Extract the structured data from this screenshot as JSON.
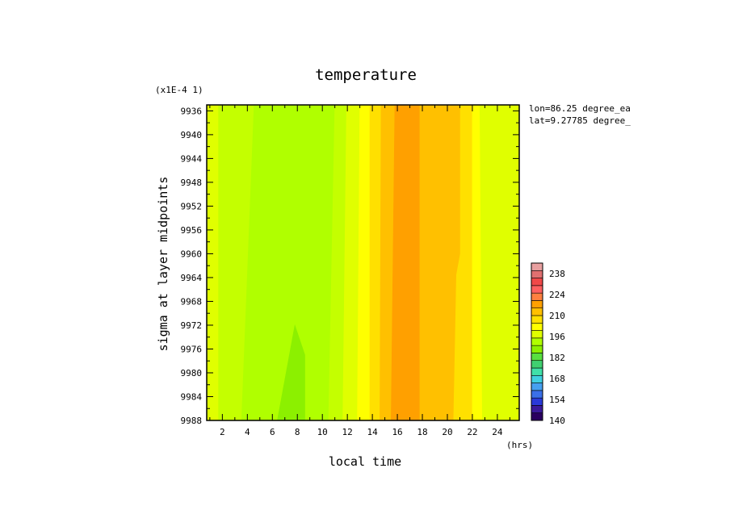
{
  "chart_data": {
    "type": "heatmap",
    "title": "temperature",
    "xlabel": "local time",
    "ylabel": "sigma at layer midpoints",
    "x_unit": "(hrs)",
    "y_multiplier": "(x1E-4 1)",
    "info": [
      "lon=86.25 degree_ea",
      "lat=9.27785 degree_"
    ],
    "xlim": [
      0.75,
      25.75
    ],
    "ylim": [
      9988,
      9935
    ],
    "x_ticks": [
      2,
      4,
      6,
      8,
      10,
      12,
      14,
      16,
      18,
      20,
      22,
      24
    ],
    "y_ticks": [
      9936,
      9940,
      9944,
      9948,
      9952,
      9956,
      9960,
      9964,
      9968,
      9972,
      9976,
      9980,
      9984,
      9988
    ],
    "x_tick_labels": [
      "2",
      "4",
      "6",
      "8",
      "10",
      "12",
      "14",
      "16",
      "18",
      "20",
      "22",
      "24"
    ],
    "y_tick_labels": [
      "9936",
      "9940",
      "9944",
      "9948",
      "9952",
      "9956",
      "9960",
      "9964",
      "9968",
      "9972",
      "9976",
      "9980",
      "9984",
      "9988"
    ],
    "colorbar": {
      "min": 140,
      "max": 245,
      "ticks": [
        140,
        154,
        168,
        182,
        196,
        210,
        224,
        238
      ],
      "tick_labels": [
        "140",
        "154",
        "168",
        "182",
        "196",
        "210",
        "224",
        "238"
      ],
      "colors": [
        "#2a0060",
        "#3a1a9a",
        "#2a3ad8",
        "#3a70e8",
        "#46a0f0",
        "#40d0e0",
        "#40e0a8",
        "#40d070",
        "#58e040",
        "#8cf000",
        "#b0ff00",
        "#e0ff00",
        "#ffff00",
        "#ffe000",
        "#ffc000",
        "#ffa000",
        "#ff8040",
        "#ff6060",
        "#f04848",
        "#e07070",
        "#e8a0a0"
      ]
    },
    "bands": [
      {
        "x0": 0.75,
        "x1": 1.7,
        "color": "#e0ff00",
        "x0_bottom": 0.75,
        "x1_bottom": 1.7
      },
      {
        "x0": 1.7,
        "x1": 4.5,
        "color": "#b0ff00",
        "x0_bottom": 1.7,
        "x1_bottom": 3.5
      },
      {
        "x0": 4.5,
        "x1": 11.9,
        "color": "#b0ff00",
        "x0_bottom": 3.5,
        "x1_bottom": 11.6
      },
      {
        "x0": 11.9,
        "x1": 13.0,
        "color": "#e0ff00",
        "x0_bottom": 11.6,
        "x1_bottom": 12.8
      },
      {
        "x0": 13.0,
        "x1": 13.8,
        "color": "#ffff00",
        "x0_bottom": 12.8,
        "x1_bottom": 13.8
      },
      {
        "x0": 13.8,
        "x1": 14.7,
        "color": "#ffe000",
        "x0_bottom": 13.8,
        "x1_bottom": 14.6
      },
      {
        "x0": 14.7,
        "x1": 15.8,
        "color": "#ffc000",
        "x0_bottom": 14.6,
        "x1_bottom": 15.5
      },
      {
        "x0": 15.8,
        "x1": 19.0,
        "color": "#ffa000",
        "x0_bottom": 15.5,
        "x1_bottom": 19.0
      },
      {
        "x0": 19.0,
        "x1": 21.0,
        "color": "#ffc000",
        "x0_bottom": 19.0,
        "x1_bottom": 20.5
      },
      {
        "x0": 21.0,
        "x1": 22.0,
        "color": "#ffe000",
        "x0_bottom": 20.5,
        "x1_bottom": 22.0
      },
      {
        "x0": 22.0,
        "x1": 22.6,
        "color": "#ffff00",
        "x0_bottom": 22.0,
        "x1_bottom": 22.8
      },
      {
        "x0": 22.6,
        "x1": 25.75,
        "color": "#e0ff00",
        "x0_bottom": 22.8,
        "x1_bottom": 25.75
      }
    ],
    "regions": [
      {
        "color": "#c4ff00",
        "points": [
          [
            4.5,
            9935
          ],
          [
            1.7,
            9935
          ],
          [
            1.7,
            9988
          ],
          [
            3.5,
            9988
          ]
        ]
      },
      {
        "color": "#c4ff00",
        "points": [
          [
            11.0,
            9935
          ],
          [
            11.9,
            9935
          ],
          [
            11.6,
            9988
          ],
          [
            10.5,
            9988
          ]
        ]
      },
      {
        "color": "#ffc000",
        "points": [
          [
            17.8,
            9935
          ],
          [
            19.0,
            9935
          ],
          [
            19.0,
            9988
          ],
          [
            17.8,
            9988
          ]
        ]
      },
      {
        "color": "#ffc000",
        "points": [
          [
            19.0,
            9935
          ],
          [
            21.0,
            9935
          ],
          [
            21.0,
            9960
          ],
          [
            19.6,
            9976
          ],
          [
            19.6,
            9988
          ],
          [
            19.0,
            9988
          ]
        ]
      },
      {
        "color": "#8cf000",
        "points": [
          [
            7.8,
            9972
          ],
          [
            8.6,
            9977
          ],
          [
            8.6,
            9988
          ],
          [
            6.4,
            9988
          ]
        ]
      }
    ]
  }
}
